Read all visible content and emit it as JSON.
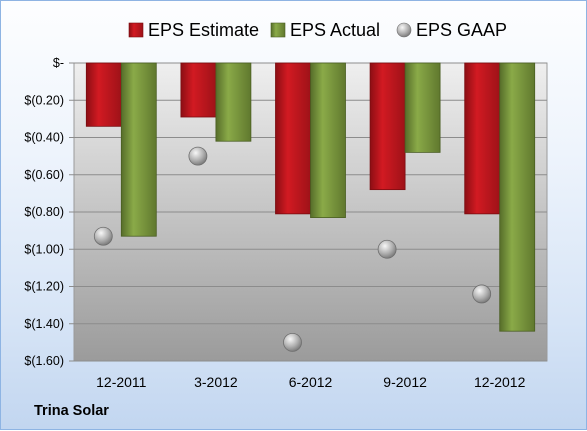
{
  "footer_label": "Trina Solar",
  "colors": {
    "estimate": "#c0151c",
    "actual": "#77933c",
    "gaap": "#a6a6a6"
  },
  "chart_data": {
    "type": "bar",
    "categories": [
      "12-2011",
      "3-2012",
      "6-2012",
      "9-2012",
      "12-2012"
    ],
    "series": [
      {
        "name": "EPS Estimate",
        "kind": "bar",
        "values": [
          -0.34,
          -0.29,
          -0.81,
          -0.68,
          -0.81
        ]
      },
      {
        "name": "EPS Actual",
        "kind": "bar",
        "values": [
          -0.93,
          -0.42,
          -0.83,
          -0.48,
          -1.44
        ]
      },
      {
        "name": "EPS GAAP",
        "kind": "marker",
        "values": [
          -0.93,
          -0.5,
          -1.5,
          -1.0,
          -1.24
        ]
      }
    ],
    "y_ticks": [
      {
        "value": 0,
        "label": "$-"
      },
      {
        "value": -0.2,
        "label": "$(0.20)"
      },
      {
        "value": -0.4,
        "label": "$(0.40)"
      },
      {
        "value": -0.6,
        "label": "$(0.60)"
      },
      {
        "value": -0.8,
        "label": "$(0.80)"
      },
      {
        "value": -1.0,
        "label": "$(1.00)"
      },
      {
        "value": -1.2,
        "label": "$(1.20)"
      },
      {
        "value": -1.4,
        "label": "$(1.40)"
      },
      {
        "value": -1.6,
        "label": "$(1.60)"
      }
    ],
    "ylim": [
      -1.6,
      0
    ],
    "grid": true,
    "legend_position": "top",
    "title": "",
    "xlabel": "",
    "ylabel": ""
  }
}
